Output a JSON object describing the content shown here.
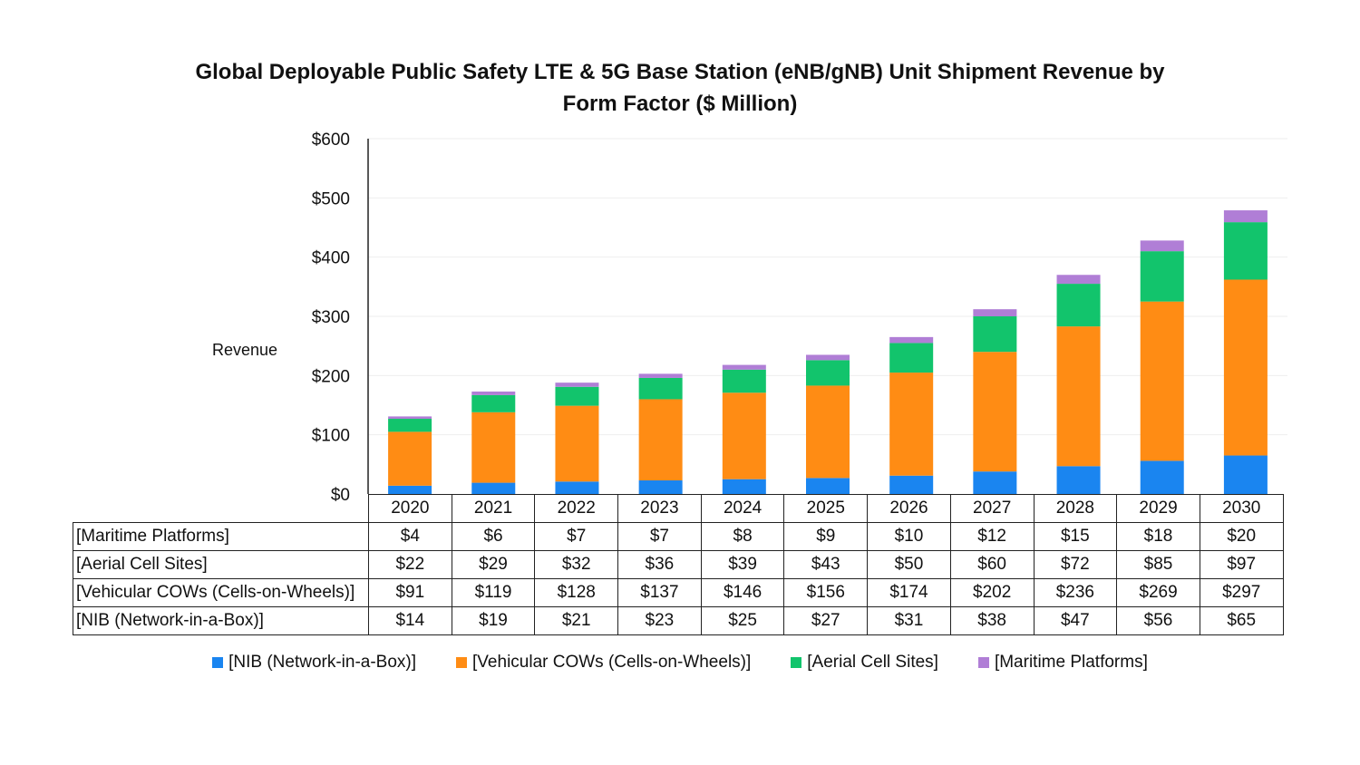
{
  "chart_data": {
    "type": "bar",
    "stacked": true,
    "title_line1": "Global Deployable Public Safety LTE & 5G Base Station (eNB/gNB) Unit Shipment Revenue by",
    "title_line2": "Form Factor ($ Million)",
    "ylabel": "Revenue",
    "xlabel": "",
    "ylim": [
      0,
      600
    ],
    "yticks": [
      "$0",
      "$100",
      "$200",
      "$300",
      "$400",
      "$500",
      "$600"
    ],
    "grid": true,
    "legend_position": "bottom",
    "categories": [
      "2020",
      "2021",
      "2022",
      "2023",
      "2024",
      "2025",
      "2026",
      "2027",
      "2028",
      "2029",
      "2030"
    ],
    "series": [
      {
        "name": "[NIB (Network-in-a-Box)]",
        "color": "#1a85f0",
        "values": [
          14,
          19,
          21,
          23,
          25,
          27,
          31,
          38,
          47,
          56,
          65
        ]
      },
      {
        "name": "[Vehicular COWs (Cells-on-Wheels)]",
        "color": "#ff8c14",
        "values": [
          91,
          119,
          128,
          137,
          146,
          156,
          174,
          202,
          236,
          269,
          297
        ]
      },
      {
        "name": "[Aerial Cell Sites]",
        "color": "#12c46c",
        "values": [
          22,
          29,
          32,
          36,
          39,
          43,
          50,
          60,
          72,
          85,
          97
        ]
      },
      {
        "name": "[Maritime Platforms]",
        "color": "#b07ed6",
        "values": [
          4,
          6,
          7,
          7,
          8,
          9,
          10,
          12,
          15,
          18,
          20
        ]
      }
    ],
    "table_rows": [
      {
        "label": "[Maritime Platforms]",
        "cells": [
          "$4",
          "$6",
          "$7",
          "$7",
          "$8",
          "$9",
          "$10",
          "$12",
          "$15",
          "$18",
          "$20"
        ]
      },
      {
        "label": "[Aerial Cell Sites]",
        "cells": [
          "$22",
          "$29",
          "$32",
          "$36",
          "$39",
          "$43",
          "$50",
          "$60",
          "$72",
          "$85",
          "$97"
        ]
      },
      {
        "label": "[Vehicular COWs (Cells-on-Wheels)]",
        "cells": [
          "$91",
          "$119",
          "$128",
          "$137",
          "$146",
          "$156",
          "$174",
          "$202",
          "$236",
          "$269",
          "$297"
        ]
      },
      {
        "label": "[NIB (Network-in-a-Box)]",
        "cells": [
          "$14",
          "$19",
          "$21",
          "$23",
          "$25",
          "$27",
          "$31",
          "$38",
          "$47",
          "$56",
          "$65"
        ]
      }
    ]
  }
}
